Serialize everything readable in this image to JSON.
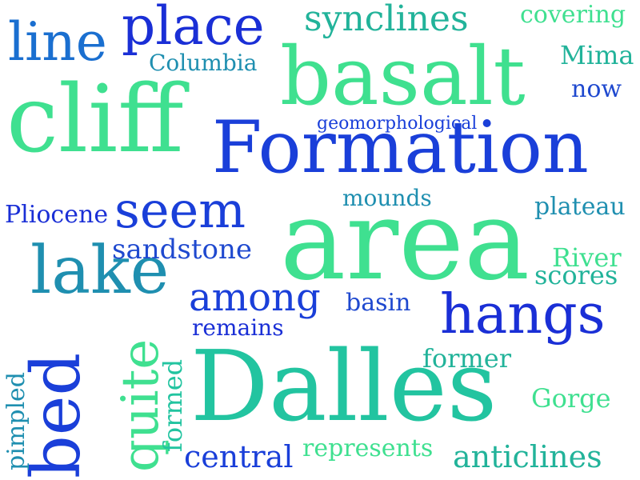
{
  "words": {
    "line": "line",
    "place": "place",
    "synclines": "synclines",
    "covering": "covering",
    "columbia": "Columbia",
    "basalt": "basalt",
    "mima": "Mima",
    "now": "now",
    "cliff": "cliff",
    "geomorphological": "geomorphological",
    "formation": "Formation",
    "pliocene": "Pliocene",
    "seem": "seem",
    "mounds": "mounds",
    "plateau": "plateau",
    "sandstone": "sandstone",
    "area": "area",
    "river": "River",
    "scores": "scores",
    "lake": "lake",
    "among": "among",
    "basin": "basin",
    "hangs": "hangs",
    "remains": "remains",
    "bed": "bed",
    "quite": "quite",
    "pimpled": "pimpled",
    "formed": "formed",
    "former": "former",
    "dalles": "Dalles",
    "gorge": "Gorge",
    "central": "central",
    "represents": "represents",
    "anticlines": "anticlines"
  },
  "colors": {
    "blue": "#1a2fd6",
    "royal": "#1f49cf",
    "teal": "#1f8fb0",
    "teal_green": "#23b59b",
    "green": "#3fe090",
    "mint": "#4de38f"
  }
}
